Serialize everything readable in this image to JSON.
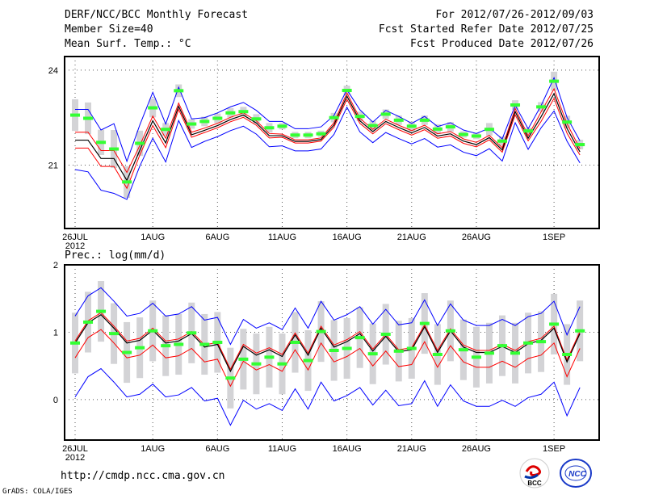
{
  "header": {
    "title": "DERF/NCC/BCC Monthly Forecast",
    "member_size": "Member Size=40",
    "variable": "Mean Surf. Temp.: °C",
    "period": "For 2012/07/26-2012/09/03",
    "started": "Fcst Started Refer Date 2012/07/25",
    "produced": "Fcst Produced Date 2012/07/26"
  },
  "footer": {
    "url": "http://cmdp.ncc.cma.gov.cn",
    "credit": "GrADS: COLA/IGES",
    "logo_bcc": "BCC",
    "logo_ncc": "NCC"
  },
  "colors": {
    "mean": "#000000",
    "red": "#ff0000",
    "blue": "#0000ff",
    "green": "#33ff33",
    "bar": "#d3d3d6"
  },
  "chart_data": [
    {
      "type": "line",
      "title": "Mean Surf. Temp.: °C",
      "xlabel": "",
      "ylabel": "°C",
      "ylim": [
        19.0,
        24.43
      ],
      "yticks": [
        "24",
        "21"
      ],
      "ytick_values": [
        24,
        21
      ],
      "xticks": [
        {
          "day": 0,
          "label": "26JUL",
          "sub": "2012"
        },
        {
          "day": 6,
          "label": "1AUG"
        },
        {
          "day": 11,
          "label": "6AUG"
        },
        {
          "day": 16,
          "label": "11AUG"
        },
        {
          "day": 21,
          "label": "16AUG"
        },
        {
          "day": 26,
          "label": "21AUG"
        },
        {
          "day": 31,
          "label": "26AUG"
        },
        {
          "day": 37,
          "label": "1SEP"
        }
      ],
      "grid": true,
      "n_days": 40,
      "mean": [
        21.79,
        21.79,
        21.21,
        21.21,
        20.52,
        21.47,
        22.4,
        21.7,
        22.86,
        21.96,
        22.1,
        22.25,
        22.44,
        22.58,
        22.33,
        21.93,
        21.93,
        21.75,
        21.75,
        21.81,
        22.27,
        23.18,
        22.4,
        22.06,
        22.38,
        22.19,
        22.02,
        22.19,
        21.92,
        21.99,
        21.76,
        21.65,
        21.87,
        21.48,
        22.69,
        21.85,
        22.53,
        23.26,
        22.16,
        21.42
      ],
      "green": [
        22.58,
        22.48,
        21.72,
        21.51,
        20.47,
        21.69,
        22.81,
        22.13,
        23.35,
        22.3,
        22.38,
        22.48,
        22.65,
        22.69,
        22.46,
        22.18,
        22.23,
        21.95,
        21.95,
        21.99,
        22.5,
        23.36,
        22.54,
        22.25,
        22.61,
        22.42,
        22.23,
        22.42,
        22.14,
        22.21,
        21.97,
        21.92,
        22.13,
        21.76,
        22.9,
        22.08,
        22.84,
        23.65,
        22.36,
        21.65
      ],
      "red_halfwidth": [
        0.25,
        0.25,
        0.25,
        0.25,
        0.25,
        0.15,
        0.15,
        0.15,
        0.1,
        0.08,
        0.07,
        0.07,
        0.07,
        0.07,
        0.07,
        0.07,
        0.05,
        0.05,
        0.05,
        0.05,
        0.07,
        0.1,
        0.08,
        0.07,
        0.07,
        0.07,
        0.07,
        0.07,
        0.07,
        0.07,
        0.07,
        0.07,
        0.07,
        0.07,
        0.1,
        0.08,
        0.15,
        0.15,
        0.15,
        0.1
      ],
      "blue_upper": [
        0.97,
        0.97,
        0.9,
        1.1,
        0.6,
        0.8,
        0.9,
        0.6,
        0.6,
        0.5,
        0.4,
        0.4,
        0.4,
        0.4,
        0.4,
        0.45,
        0.45,
        0.4,
        0.4,
        0.4,
        0.3,
        0.2,
        0.35,
        0.3,
        0.35,
        0.35,
        0.3,
        0.35,
        0.3,
        0.35,
        0.35,
        0.35,
        0.3,
        0.35,
        0.2,
        0.3,
        0.35,
        0.5,
        0.35,
        0.35
      ],
      "blue_lower": [
        0.93,
        1.0,
        1.0,
        1.1,
        0.6,
        0.5,
        0.55,
        0.6,
        0.45,
        0.4,
        0.35,
        0.35,
        0.35,
        0.35,
        0.35,
        0.35,
        0.32,
        0.3,
        0.3,
        0.3,
        0.3,
        0.35,
        0.35,
        0.35,
        0.35,
        0.35,
        0.35,
        0.35,
        0.35,
        0.35,
        0.35,
        0.35,
        0.35,
        0.35,
        0.35,
        0.35,
        0.35,
        0.55,
        0.4,
        0.35
      ],
      "bar_halfwidth": [
        0.5,
        0.5,
        0.4,
        0.6,
        0.5,
        0.4,
        0.3,
        0.2,
        0.2,
        0.15,
        0.15,
        0.15,
        0.15,
        0.15,
        0.15,
        0.15,
        0.1,
        0.1,
        0.1,
        0.1,
        0.15,
        0.15,
        0.15,
        0.15,
        0.15,
        0.15,
        0.15,
        0.15,
        0.15,
        0.15,
        0.1,
        0.1,
        0.2,
        0.15,
        0.15,
        0.1,
        0.15,
        0.3,
        0.2,
        0.15
      ]
    },
    {
      "type": "line",
      "title": "Prec.: log(mm/d)",
      "xlabel": "",
      "ylabel": "log(mm/d)",
      "ylim": [
        -0.6,
        2.0
      ],
      "yticks": [
        "2",
        "1",
        "0"
      ],
      "ytick_values": [
        2,
        1,
        0
      ],
      "xticks": [
        {
          "day": 0,
          "label": "26JUL",
          "sub": "2012"
        },
        {
          "day": 6,
          "label": "1AUG"
        },
        {
          "day": 11,
          "label": "6AUG"
        },
        {
          "day": 16,
          "label": "11AUG"
        },
        {
          "day": 21,
          "label": "16AUG"
        },
        {
          "day": 26,
          "label": "21AUG"
        },
        {
          "day": 31,
          "label": "26AUG"
        },
        {
          "day": 37,
          "label": "1SEP"
        }
      ],
      "grid": true,
      "n_days": 40,
      "mean": [
        0.84,
        1.14,
        1.26,
        1.06,
        0.84,
        0.88,
        1.03,
        0.84,
        0.87,
        0.98,
        0.78,
        0.82,
        0.42,
        0.79,
        0.66,
        0.74,
        0.64,
        0.96,
        0.66,
        1.06,
        0.78,
        0.86,
        0.98,
        0.72,
        0.94,
        0.71,
        0.74,
        1.08,
        0.7,
        1.02,
        0.78,
        0.7,
        0.7,
        0.79,
        0.7,
        0.83,
        0.88,
        1.06,
        0.56,
        0.98
      ],
      "green": [
        0.84,
        1.15,
        1.31,
        0.98,
        0.7,
        0.77,
        1.02,
        0.8,
        0.82,
        0.99,
        0.82,
        0.85,
        0.32,
        0.6,
        0.53,
        0.63,
        0.53,
        0.85,
        0.58,
        1.01,
        0.73,
        0.76,
        0.92,
        0.68,
        0.97,
        0.72,
        0.76,
        1.13,
        0.67,
        1.02,
        0.74,
        0.63,
        0.69,
        0.8,
        0.69,
        0.84,
        0.86,
        1.12,
        0.67,
        1.02
      ],
      "red_upper_offset": 0.03,
      "red_lower_offset": 0.22,
      "blue_upper_offset": 0.4,
      "blue_lower_offset": 0.8,
      "bar_halfwidth_value": 0.45
    }
  ]
}
